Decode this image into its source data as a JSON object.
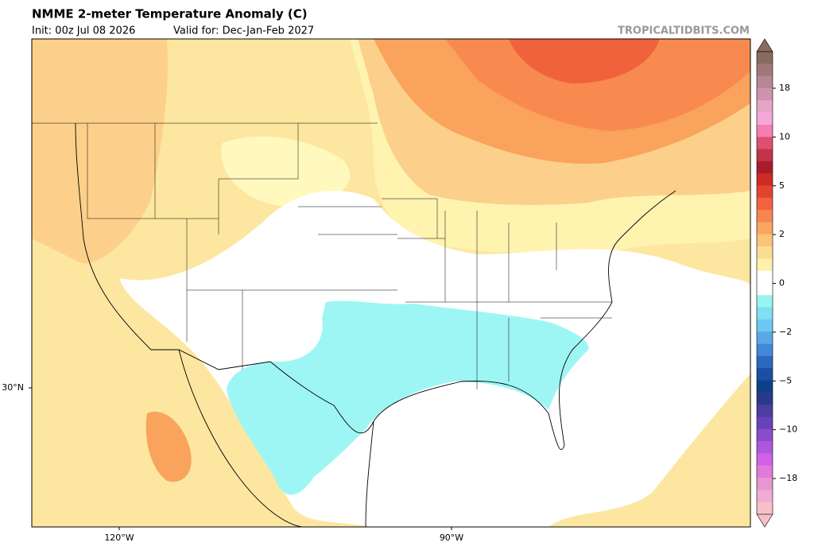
{
  "header": {
    "title": "NMME 2-meter Temperature Anomaly (C)",
    "init": "Init: 00z Jul 08 2026",
    "valid": "Valid for: Dec-Jan-Feb 2027",
    "source": "TROPICALTIDBITS.COM"
  },
  "map": {
    "lat_labels": [
      "30°N"
    ],
    "lon_labels": [
      "120°W",
      "90°W"
    ]
  },
  "colorbar": {
    "colors": [
      "#8a6a5e",
      "#a07878",
      "#b58796",
      "#cc92ae",
      "#e6a4c8",
      "#f5a8d8",
      "#f47eb0",
      "#dc5070",
      "#c23448",
      "#a81c2c",
      "#cf2a26",
      "#e4442f",
      "#f2623e",
      "#f88450",
      "#f9a660",
      "#fac47a",
      "#fcdc92",
      "#fff0ac",
      "#ffffff",
      "#ffffff",
      "#98f4f0",
      "#7ee0f2",
      "#6cc8f0",
      "#5aa8e6",
      "#4288d6",
      "#2c68c0",
      "#1c4ea4",
      "#0c4088",
      "#2a3a88",
      "#4a3ea0",
      "#6644b8",
      "#8a4ccc",
      "#ae56dc",
      "#d062e8",
      "#e07ad8",
      "#e896d2",
      "#f0acd4",
      "#f8c0c8"
    ],
    "ticks": [
      18,
      10,
      5,
      2,
      0,
      {
        "value": -2,
        "label": "−2"
      },
      {
        "value": -5,
        "label": "−5"
      },
      {
        "value": -10,
        "label": "−10"
      },
      {
        "value": -18,
        "label": "−18"
      }
    ]
  }
}
